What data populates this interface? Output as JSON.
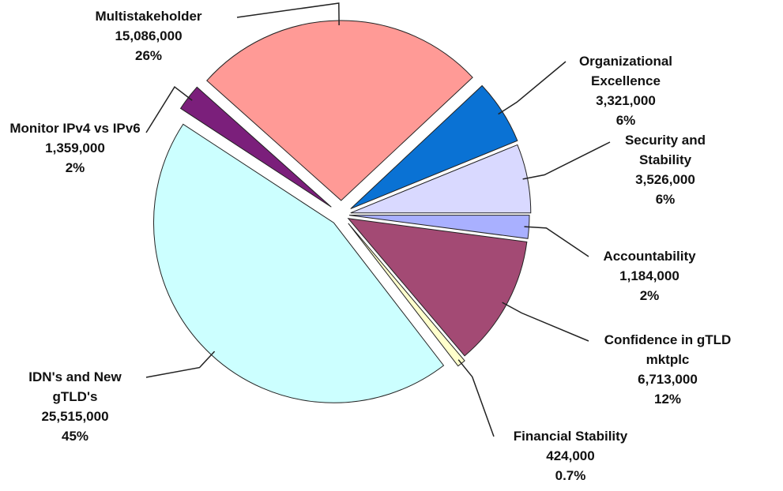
{
  "chart_data": {
    "type": "pie",
    "categories": [
      "Accountability",
      "Confidence in gTLD mktplc",
      "Financial Stability",
      "IDN's and New gTLD's",
      "Monitor IPv4 vs IPv6",
      "Multistakeholder",
      "Organizational Excellence",
      "Security and Stability"
    ],
    "values": [
      1184000,
      6713000,
      424000,
      25515000,
      1359000,
      15086000,
      3321000,
      3526000
    ],
    "value_labels": [
      "1,184,000",
      "6,713,000",
      "424,000",
      "25,515,000",
      "1,359,000",
      "15,086,000",
      "3,321,000",
      "3,526,000"
    ],
    "percent_labels": [
      "2%",
      "12%",
      "0.7%",
      "45%",
      "2%",
      "26%",
      "6%",
      "6%"
    ],
    "colors": [
      "#a9b0ff",
      "#a34a74",
      "#ffffcc",
      "#ccffff",
      "#7b1f7b",
      "#ff9a96",
      "#0a72d4",
      "#d9d9ff"
    ]
  }
}
